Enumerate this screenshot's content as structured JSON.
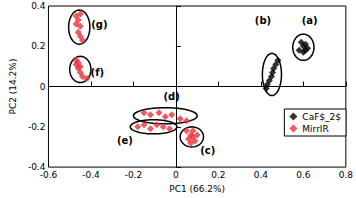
{
  "chart_data": {
    "type": "scatter",
    "x_label": "PC1 (66.2%)",
    "y_label": "PC2 (14.2%)",
    "xlim": [
      -0.6,
      0.8
    ],
    "xticks": [
      -0.6,
      -0.4,
      -0.2,
      0,
      0.2,
      0.4,
      0.6,
      0.8
    ],
    "ylim": [
      -0.4,
      0.4
    ],
    "yticks": [
      -0.4,
      -0.2,
      0,
      0.2,
      0.4
    ],
    "grid": false,
    "legend": "lower right",
    "marker": "diamond",
    "series": [
      {
        "name": "CaF$_2$",
        "color": "#000000",
        "x": [
          0.58,
          0.6,
          0.61,
          0.62,
          0.6,
          0.59,
          0.61,
          0.48,
          0.47,
          0.46,
          0.455,
          0.45,
          0.44,
          0.43,
          0.425
        ],
        "y": [
          0.18,
          0.2,
          0.21,
          0.19,
          0.17,
          0.22,
          0.18,
          0.13,
          0.11,
          0.09,
          0.07,
          0.05,
          0.03,
          0.01,
          -0.01
        ]
      },
      {
        "name": "MirrIR",
        "color": "#e8323c",
        "x": [
          -0.47,
          -0.46,
          -0.45,
          -0.46,
          -0.45,
          -0.44,
          -0.47,
          -0.45,
          -0.47,
          -0.46,
          -0.45,
          -0.46,
          -0.45,
          -0.44,
          -0.42,
          -0.47,
          -0.15,
          -0.12,
          -0.08,
          -0.05,
          -0.02,
          0.02,
          0.05,
          -0.18,
          -0.15,
          -0.12,
          -0.09,
          -0.06,
          -0.03,
          0.05,
          0.07,
          0.08,
          0.06,
          0.09,
          0.08,
          0.1,
          0.07
        ],
        "y": [
          0.35,
          0.33,
          0.3,
          0.27,
          0.25,
          0.23,
          0.31,
          0.36,
          0.13,
          0.12,
          0.1,
          0.09,
          0.07,
          0.05,
          0.04,
          0.11,
          -0.13,
          -0.14,
          -0.13,
          -0.15,
          -0.14,
          -0.16,
          -0.17,
          -0.2,
          -0.19,
          -0.21,
          -0.19,
          -0.2,
          -0.21,
          -0.22,
          -0.24,
          -0.25,
          -0.26,
          -0.27,
          -0.22,
          -0.24,
          -0.28
        ]
      }
    ],
    "groups": [
      {
        "label": "(a)",
        "label_x": 0.63,
        "label_y": 0.33,
        "center": [
          0.6,
          0.195
        ],
        "radii": [
          0.05,
          0.065
        ]
      },
      {
        "label": "(b)",
        "label_x": 0.41,
        "label_y": 0.33,
        "center": [
          0.452,
          0.06
        ],
        "radii": [
          0.045,
          0.105
        ]
      },
      {
        "label": "(g)",
        "label_x": -0.36,
        "label_y": 0.31,
        "center": [
          -0.455,
          0.295
        ],
        "radii": [
          0.05,
          0.085
        ]
      },
      {
        "label": "(f)",
        "label_x": -0.37,
        "label_y": 0.07,
        "center": [
          -0.45,
          0.085
        ],
        "radii": [
          0.05,
          0.065
        ]
      },
      {
        "label": "(d)",
        "label_x": -0.02,
        "label_y": -0.05,
        "center": [
          -0.05,
          -0.145
        ],
        "radii": [
          0.15,
          0.04
        ]
      },
      {
        "label": "(e)",
        "label_x": -0.24,
        "label_y": -0.27,
        "center": [
          -0.105,
          -0.2
        ],
        "radii": [
          0.11,
          0.035
        ]
      },
      {
        "label": "(c)",
        "label_x": 0.15,
        "label_y": -0.32,
        "center": [
          0.075,
          -0.25
        ],
        "radii": [
          0.055,
          0.05
        ]
      }
    ]
  }
}
